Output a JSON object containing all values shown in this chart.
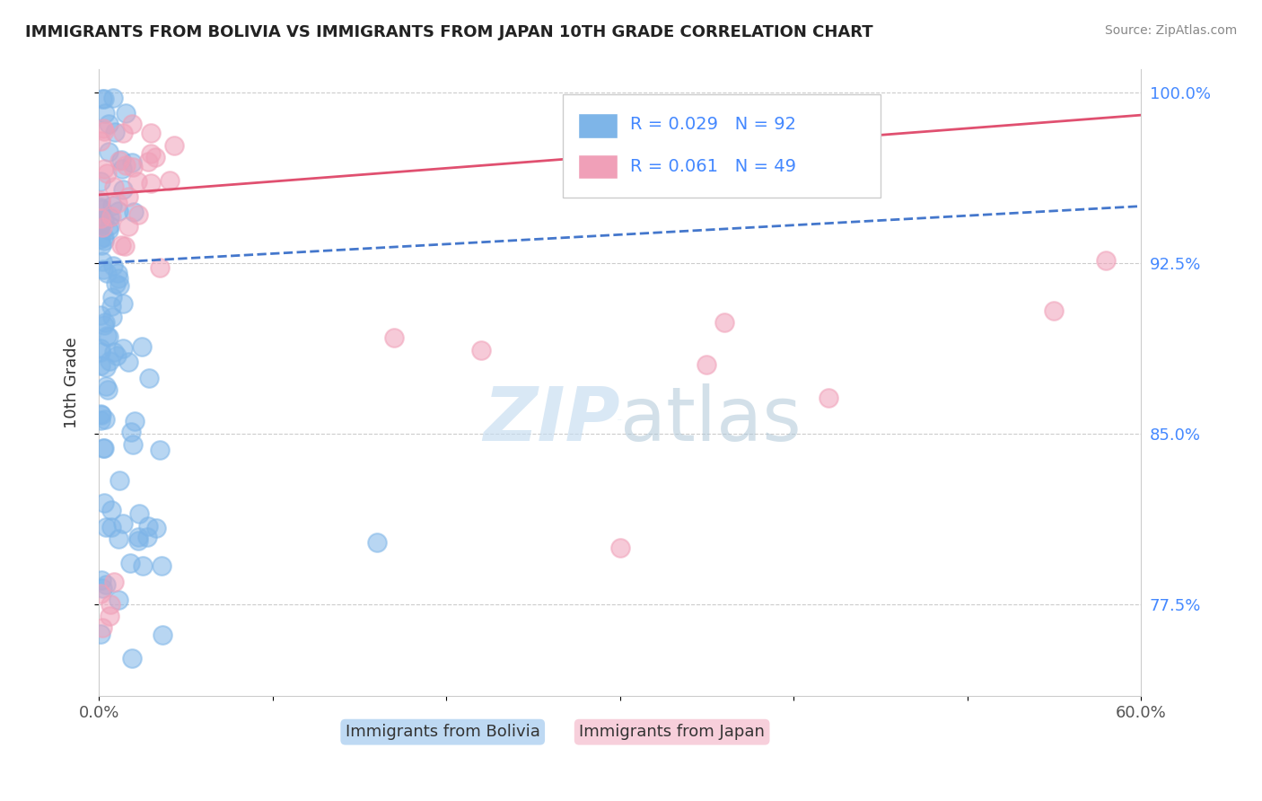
{
  "title": "IMMIGRANTS FROM BOLIVIA VS IMMIGRANTS FROM JAPAN 10TH GRADE CORRELATION CHART",
  "source": "Source: ZipAtlas.com",
  "xlabel_bolivia": "Immigrants from Bolivia",
  "xlabel_japan": "Immigrants from Japan",
  "ylabel": "10th Grade",
  "xlim": [
    0.0,
    0.6
  ],
  "ylim": [
    0.735,
    1.01
  ],
  "yticks": [
    0.775,
    0.85,
    0.925,
    1.0
  ],
  "yticklabels": [
    "77.5%",
    "85.0%",
    "92.5%",
    "100.0%"
  ],
  "bolivia_color": "#7EB5E8",
  "japan_color": "#F0A0B8",
  "bolivia_R": 0.029,
  "bolivia_N": 92,
  "japan_R": 0.061,
  "japan_N": 49,
  "bolivia_trend_color": "#4477CC",
  "japan_trend_color": "#E05070",
  "watermark_color": "#D8E8F5",
  "background_color": "#ffffff",
  "grid_color": "#cccccc"
}
